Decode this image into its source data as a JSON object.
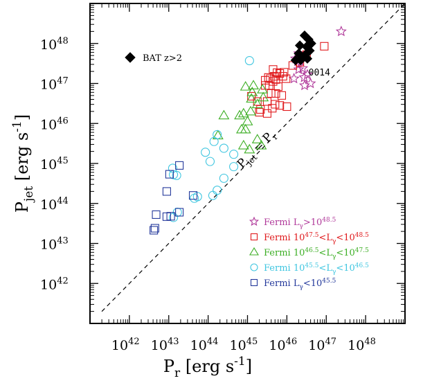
{
  "chart_data": {
    "type": "scatter",
    "xlabel": "P_r [erg s^-1]",
    "ylabel": "P_jet [erg s^-1]",
    "x_log_range": [
      41.0,
      49.0
    ],
    "y_log_range": [
      41.0,
      49.0
    ],
    "log_scale": true,
    "x_tick_labels": [
      "10^42",
      "10^43",
      "10^44",
      "10^45",
      "10^46",
      "10^47",
      "10^48"
    ],
    "y_tick_labels": [
      "10^42",
      "10^43",
      "10^44",
      "10^45",
      "10^46",
      "10^47",
      "10^48"
    ],
    "reference_line": {
      "label": "P_jet = P_r",
      "style": "dashed"
    },
    "annotations": [
      {
        "text": "0014",
        "x_log": 46.55,
        "y_log": 47.2
      }
    ],
    "legend_placement": "bottom-right",
    "legend": [
      {
        "label": "Fermi L_γ>10^48.5",
        "color": "#b0399a",
        "marker": "star"
      },
      {
        "label": "Fermi 10^47.5<L_γ<10^48.5",
        "color": "#e0191c",
        "marker": "square"
      },
      {
        "label": "Fermi 10^46.5<L_γ<10^47.5",
        "color": "#3cae24",
        "marker": "triangle"
      },
      {
        "label": "Fermi 10^45.5<L_γ<10^46.5",
        "color": "#3fc6e0",
        "marker": "circle"
      },
      {
        "label": "Fermi L_γ<10^45.5",
        "color": "#23389b",
        "marker": "square"
      }
    ],
    "bat_legend": {
      "label": "BAT z>2",
      "color": "#000000",
      "marker": "diamond"
    },
    "series": [
      {
        "name": "Fermi L_γ>10^48.5",
        "color": "#b0399a",
        "marker": "star",
        "points": [
          [
            47.38,
            48.3
          ],
          [
            46.3,
            47.75
          ],
          [
            46.22,
            47.62
          ],
          [
            46.27,
            47.55
          ],
          [
            46.4,
            47.38
          ],
          [
            46.3,
            47.35
          ],
          [
            46.44,
            47.15
          ],
          [
            46.52,
            47.22
          ],
          [
            46.6,
            47.0
          ],
          [
            46.45,
            46.95
          ],
          [
            46.18,
            47.12
          ]
        ]
      },
      {
        "name": "Fermi 10^47.5<L_γ<10^48.5",
        "color": "#e0191c",
        "marker": "square",
        "points": [
          [
            46.95,
            47.93
          ],
          [
            46.5,
            47.72
          ],
          [
            46.33,
            47.53
          ],
          [
            46.15,
            47.45
          ],
          [
            45.75,
            47.27
          ],
          [
            45.82,
            47.25
          ],
          [
            45.68,
            47.18
          ],
          [
            45.93,
            47.28
          ],
          [
            45.9,
            47.18
          ],
          [
            45.98,
            47.12
          ],
          [
            45.53,
            47.15
          ],
          [
            45.58,
            47.12
          ],
          [
            45.72,
            47.1
          ],
          [
            45.65,
            47.05
          ],
          [
            45.45,
            46.95
          ],
          [
            45.55,
            46.95
          ],
          [
            45.78,
            46.92
          ],
          [
            45.72,
            46.75
          ],
          [
            45.87,
            46.7
          ],
          [
            45.7,
            46.48
          ],
          [
            45.82,
            46.45
          ],
          [
            46.0,
            46.42
          ],
          [
            45.63,
            46.38
          ],
          [
            45.5,
            46.55
          ],
          [
            45.25,
            46.55
          ],
          [
            45.33,
            46.35
          ],
          [
            45.3,
            46.28
          ],
          [
            45.1,
            46.68
          ],
          [
            45.5,
            46.25
          ],
          [
            45.65,
            47.35
          ],
          [
            45.45,
            47.08
          ],
          [
            45.6,
            46.75
          ]
        ]
      },
      {
        "name": "Fermi 10^46.5<L_γ<10^47.5",
        "color": "#3cae24",
        "marker": "triangle",
        "points": [
          [
            44.95,
            46.92
          ],
          [
            45.15,
            46.95
          ],
          [
            45.12,
            46.78
          ],
          [
            45.38,
            46.85
          ],
          [
            45.4,
            46.65
          ],
          [
            45.1,
            46.62
          ],
          [
            45.25,
            46.48
          ],
          [
            45.08,
            46.3
          ],
          [
            44.9,
            46.25
          ],
          [
            45.0,
            46.05
          ],
          [
            44.8,
            46.2
          ],
          [
            44.4,
            46.2
          ],
          [
            44.85,
            45.85
          ],
          [
            44.95,
            45.85
          ],
          [
            45.25,
            45.6
          ],
          [
            45.35,
            45.45
          ],
          [
            44.9,
            45.45
          ],
          [
            45.05,
            45.35
          ],
          [
            44.25,
            45.7
          ]
        ]
      },
      {
        "name": "Fermi 10^45.5<L_γ<10^46.5",
        "color": "#3fc6e0",
        "marker": "circle",
        "points": [
          [
            45.05,
            47.57
          ],
          [
            44.23,
            45.72
          ],
          [
            44.15,
            45.55
          ],
          [
            44.4,
            45.38
          ],
          [
            43.93,
            45.28
          ],
          [
            44.05,
            45.05
          ],
          [
            44.65,
            45.23
          ],
          [
            44.65,
            44.92
          ],
          [
            44.4,
            44.63
          ],
          [
            44.23,
            44.33
          ],
          [
            44.12,
            44.2
          ],
          [
            43.73,
            44.17
          ],
          [
            43.1,
            44.88
          ],
          [
            43.12,
            44.72
          ],
          [
            43.2,
            44.7
          ],
          [
            43.12,
            43.65
          ],
          [
            43.22,
            43.78
          ],
          [
            43.65,
            44.13
          ]
        ]
      },
      {
        "name": "Fermi L_γ<10^45.5",
        "color": "#23389b",
        "marker": "square",
        "points": [
          [
            43.27,
            44.95
          ],
          [
            43.02,
            44.73
          ],
          [
            42.95,
            44.3
          ],
          [
            42.68,
            43.72
          ],
          [
            42.65,
            43.38
          ],
          [
            42.62,
            43.33
          ],
          [
            42.95,
            43.67
          ],
          [
            43.05,
            43.68
          ],
          [
            43.27,
            43.78
          ],
          [
            43.62,
            44.2
          ]
        ]
      },
      {
        "name": "BAT z>2",
        "color": "#000000",
        "marker": "diamond",
        "points": [
          [
            46.45,
            48.2
          ],
          [
            46.55,
            48.1
          ],
          [
            46.62,
            48.0
          ],
          [
            46.5,
            47.92
          ],
          [
            46.33,
            47.95
          ],
          [
            46.58,
            47.82
          ],
          [
            46.47,
            47.72
          ],
          [
            46.4,
            47.65
          ],
          [
            46.3,
            47.75
          ],
          [
            46.35,
            47.58
          ],
          [
            46.22,
            47.58
          ],
          [
            46.52,
            47.62
          ]
        ]
      }
    ]
  }
}
